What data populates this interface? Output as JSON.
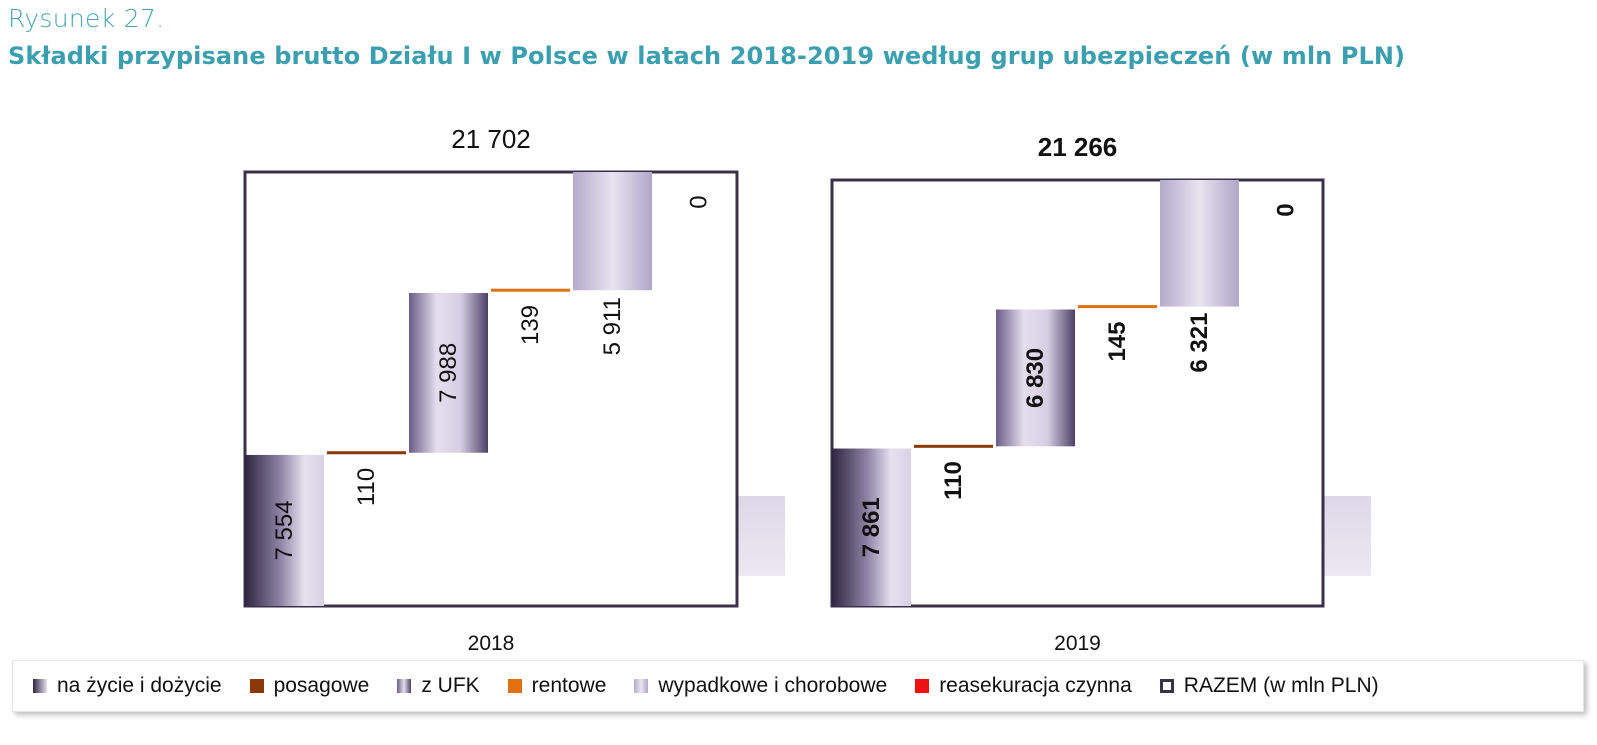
{
  "figure": {
    "label": "Rysunek 27.",
    "title": "Składki przypisane brutto Działu I w Polsce w latach 2018-2019 według grup ubezpieczeń (w mln PLN)"
  },
  "colors": {
    "na_zycie": "#3e3450",
    "posagowe": "#8a3a0a",
    "z_ufk": "#6a5a85",
    "rentowe": "#e07010",
    "wypadkowe": "#b8aed0",
    "reasekuracja": "#ee1111",
    "razem_border": "#3a3048"
  },
  "chart_data": [
    {
      "type": "bar",
      "chart_style": "waterfall",
      "xlabel": "2018",
      "total_label": "21 702",
      "total": 21702,
      "labels_bold": false,
      "categories": [
        "na życie i dożycie",
        "posagowe",
        "z UFK",
        "rentowe",
        "wypadkowe i chorobowe",
        "reasekuracja czynna"
      ],
      "values": [
        7554,
        110,
        7988,
        139,
        5911,
        0
      ],
      "value_labels": [
        "7 554",
        "110",
        "7 988",
        "139",
        "5 911",
        "0"
      ]
    },
    {
      "type": "bar",
      "chart_style": "waterfall",
      "xlabel": "2019",
      "total_label": "21 266",
      "total": 21266,
      "labels_bold": true,
      "categories": [
        "na życie i dożycie",
        "posagowe",
        "z UFK",
        "rentowe",
        "wypadkowe i chorobowe",
        "reasekuracja czynna"
      ],
      "values": [
        7861,
        110,
        6830,
        145,
        6321,
        0
      ],
      "value_labels": [
        "7 861",
        "110",
        "6 830",
        "145",
        "6 321",
        "0"
      ]
    }
  ],
  "legend": {
    "items": [
      {
        "label": "na życie i dożycie",
        "key": "na_zycie"
      },
      {
        "label": "posagowe",
        "key": "posagowe"
      },
      {
        "label": "z UFK",
        "key": "z_ufk"
      },
      {
        "label": "rentowe",
        "key": "rentowe"
      },
      {
        "label": "wypadkowe i chorobowe",
        "key": "wypadkowe"
      },
      {
        "label": "reasekuracja czynna",
        "key": "reasekuracja"
      },
      {
        "label": "RAZEM (w mln PLN)",
        "key": "razem_border"
      }
    ]
  }
}
